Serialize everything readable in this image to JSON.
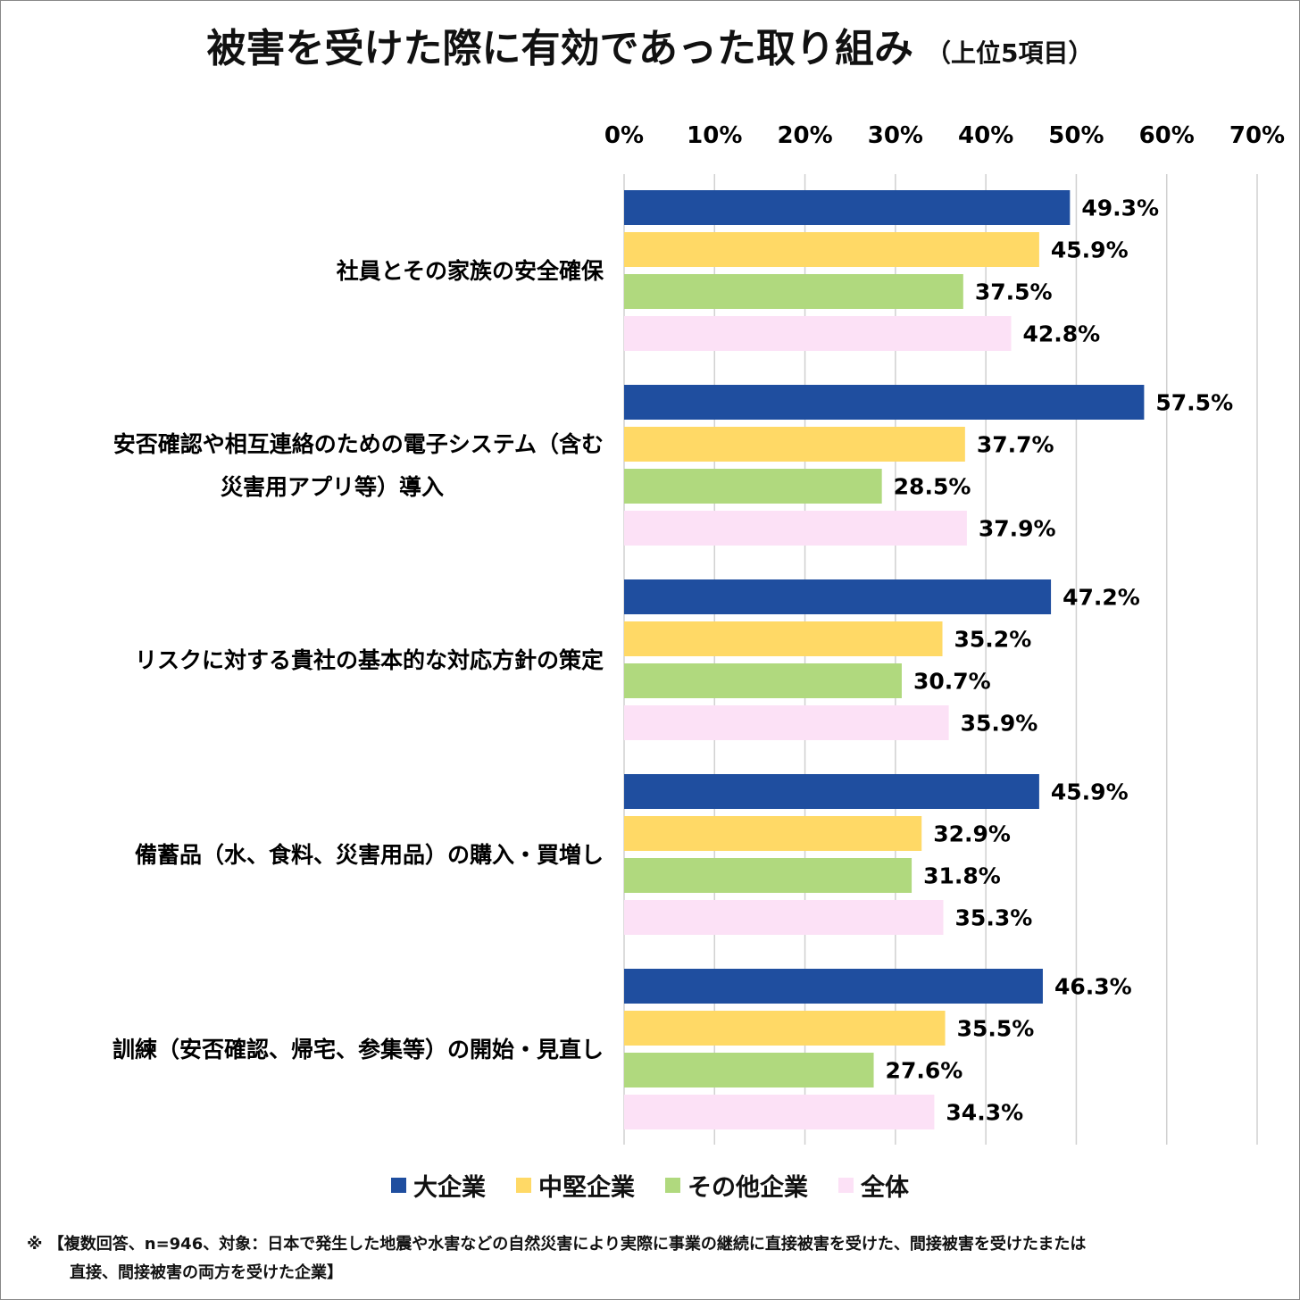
{
  "chart_data": {
    "type": "bar",
    "orientation": "horizontal",
    "title": "被害を受けた際に有効であった取り組み",
    "subtitle": "（上位5項目）",
    "categories": [
      [
        "社員とその家族の安全確保"
      ],
      [
        "安否確認や相互連絡のための電子システム（含む",
        "災害用アプリ等）導入"
      ],
      [
        "リスクに対する貴社の基本的な対応方針の策定"
      ],
      [
        "備蓄品（水、食料、災害用品）の購入・買増し"
      ],
      [
        "訓練（安否確認、帰宅、参集等）の開始・見直し"
      ]
    ],
    "series": [
      {
        "name": "大企業",
        "color": "#1F4E9F",
        "values": [
          49.3,
          57.5,
          47.2,
          45.9,
          46.3
        ]
      },
      {
        "name": "中堅企業",
        "color": "#FFD966",
        "values": [
          45.9,
          37.7,
          35.2,
          32.9,
          35.5
        ]
      },
      {
        "name": "その他企業",
        "color": "#B0D97E",
        "values": [
          37.5,
          28.5,
          30.7,
          31.8,
          27.6
        ]
      },
      {
        "name": "全体",
        "color": "#FCE1F6",
        "values": [
          42.8,
          37.9,
          35.9,
          35.3,
          34.3
        ]
      }
    ],
    "xlim": [
      0,
      70
    ],
    "xticks": [
      "0%",
      "10%",
      "20%",
      "30%",
      "40%",
      "50%",
      "60%",
      "70%"
    ],
    "xaxis_position": "top",
    "grid": true,
    "legend_position": "bottom",
    "value_suffix": "%"
  },
  "note": {
    "line1": "※ 【複数回答、n=946、対象：日本で発生した地震や水害などの自然災害により実際に事業の継続に直接被害を受けた、間接被害を受けたまたは",
    "line2": "直接、間接被害の両方を受けた企業】"
  }
}
